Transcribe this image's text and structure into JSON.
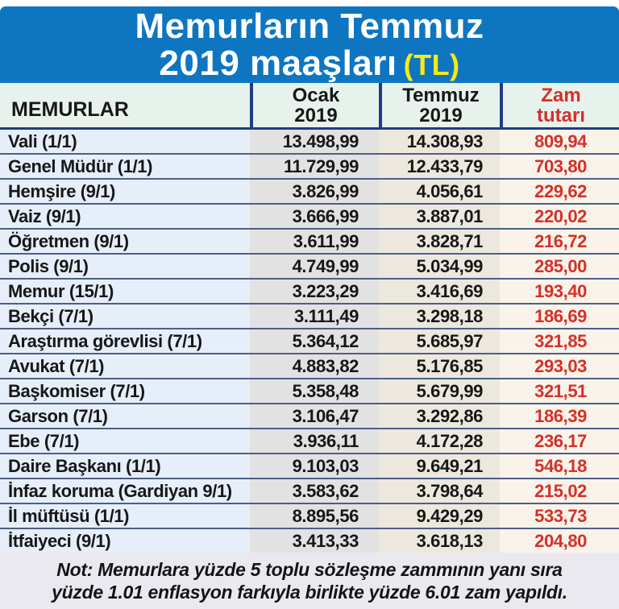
{
  "title": {
    "line1": "Memurların Temmuz",
    "line2": "2019 maaşları",
    "unit": "(TL)"
  },
  "header_display": {
    "col1": "MEMURLAR",
    "col2": "Ocak\n2019",
    "col3": "Temmuz\n2019",
    "col4": "Zam\ntutarı"
  },
  "note_display": {
    "text": "Not: Memurlara yüzde 5 toplu sözleşme zammının yanı sıra\nyüzde 1.01 enflasyon farkıyla birlikte yüzde 6.01 zam yapıldı."
  },
  "colors": {
    "banner_blue": "#0e76c1",
    "title_white": "#ffffff",
    "unit_yellow": "#f7ea14",
    "header_bg": "#e7f2ec",
    "divider_navy": "#1f3d85",
    "row_line_blue": "#4e5e86",
    "col_memurlar_bg": "#e6eefa",
    "col_ocak_bg": "#e3e2e2",
    "col_temmuz_bg": "#ece8de",
    "col_zam_bg": "#f9f3e9",
    "zam_red": "#d5302a",
    "ink": "#171717",
    "note_bg": "#eae9f0"
  },
  "chart_data": {
    "type": "table",
    "title": "Memurların Temmuz 2019 maaşları (TL)",
    "columns": [
      "MEMURLAR",
      "Ocak 2019",
      "Temmuz 2019",
      "Zam tutarı"
    ],
    "rows": [
      [
        "Vali (1/1)",
        "13.498,99",
        "14.308,93",
        "809,94"
      ],
      [
        "Genel Müdür (1/1)",
        "11.729,99",
        "12.433,79",
        "703,80"
      ],
      [
        "Hemşire (9/1)",
        "3.826,99",
        "4.056,61",
        "229,62"
      ],
      [
        "Vaiz (9/1)",
        "3.666,99",
        "3.887,01",
        "220,02"
      ],
      [
        "Öğretmen (9/1)",
        "3.611,99",
        "3.828,71",
        "216,72"
      ],
      [
        "Polis (9/1)",
        "4.749,99",
        "5.034,99",
        "285,00"
      ],
      [
        "Memur (15/1)",
        "3.223,29",
        "3.416,69",
        "193,40"
      ],
      [
        "Bekçi (7/1)",
        "3.111,49",
        "3.298,18",
        "186,69"
      ],
      [
        "Araştırma görevlisi (7/1)",
        "5.364,12",
        "5.685,97",
        "321,85"
      ],
      [
        "Avukat (7/1)",
        "4.883,82",
        "5.176,85",
        "293,03"
      ],
      [
        "Başkomiser (7/1)",
        "5.358,48",
        "5.679,99",
        "321,51"
      ],
      [
        "Garson (7/1)",
        "3.106,47",
        "3.292,86",
        "186,39"
      ],
      [
        "Ebe (7/1)",
        "3.936,11",
        "4.172,28",
        "236,17"
      ],
      [
        "Daire Başkanı (1/1)",
        "9.103,03",
        "9.649,21",
        "546,18"
      ],
      [
        "İnfaz koruma (Gardiyan 9/1)",
        "3.583,62",
        "3.798,64",
        "215,02"
      ],
      [
        "İl müftüsü (1/1)",
        "8.895,56",
        "9.429,29",
        "533,73"
      ],
      [
        "İtfaiyeci (9/1)",
        "3.413,33",
        "3.618,13",
        "204,80"
      ]
    ],
    "note": "Not: Memurlara yüzde 5 toplu sözleşme zammının yanı sıra yüzde 1.01 enflasyon farkıyla birlikte yüzde 6.01 zam yapıldı."
  }
}
